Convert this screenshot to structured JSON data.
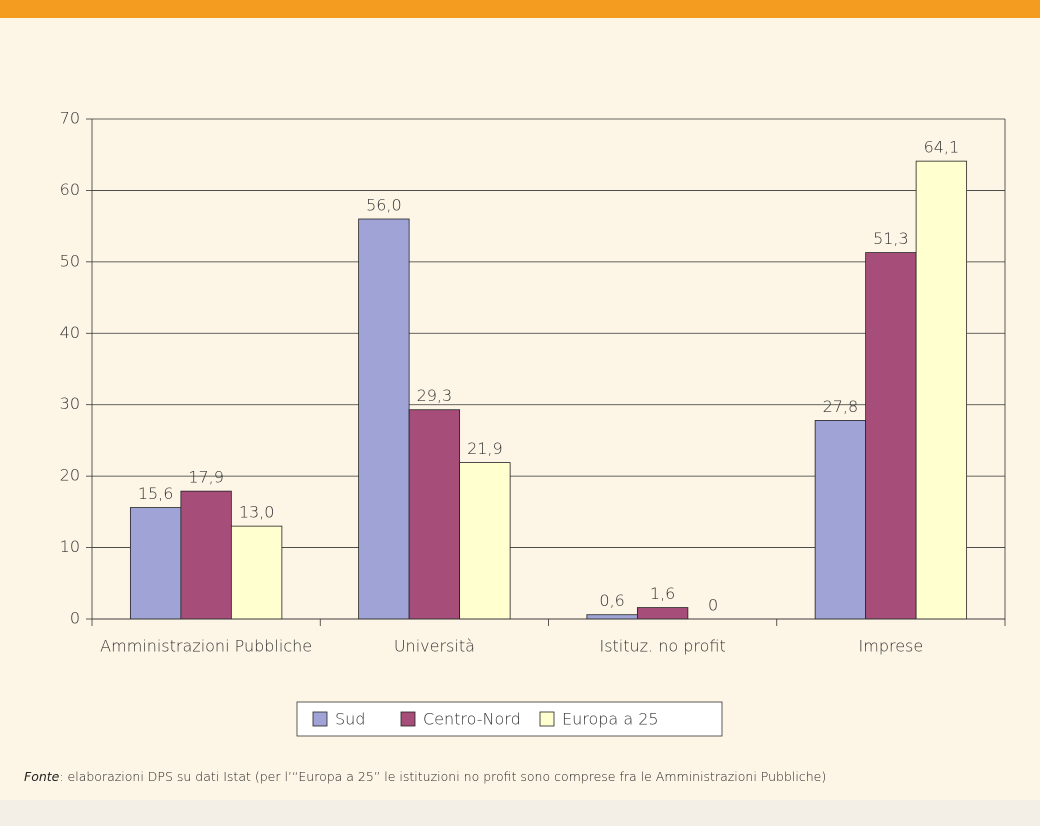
{
  "chart_data": {
    "type": "bar",
    "categories": [
      "Amministrazioni Pubbliche",
      "Università",
      "Istituz. no profit",
      "Imprese"
    ],
    "series": [
      {
        "name": "Sud",
        "color": "#a0a3d6",
        "values": [
          15.6,
          56.0,
          0.6,
          27.8
        ],
        "value_labels": [
          "15,6",
          "56,0",
          "0,6",
          "27,8"
        ]
      },
      {
        "name": "Centro-Nord",
        "color": "#a64d79",
        "values": [
          17.9,
          29.3,
          1.6,
          51.3
        ],
        "value_labels": [
          "17,9",
          "29,3",
          "1,6",
          "51,3"
        ]
      },
      {
        "name": "Europa a 25",
        "color": "#ffffd0",
        "values": [
          13.0,
          21.9,
          0,
          64.1
        ],
        "value_labels": [
          "13,0",
          "21,9",
          "0",
          "64,1"
        ]
      }
    ],
    "ylim": [
      0,
      70
    ],
    "yticks": [
      0,
      10,
      20,
      30,
      40,
      50,
      60,
      70
    ],
    "grid": true,
    "legend": "bottom",
    "source_label": "Fonte",
    "source": ": elaborazioni DPS su dati Istat (per l’“Europa a 25” le istituzioni no profit sono comprese fra le Amministrazioni Pubbliche)"
  }
}
